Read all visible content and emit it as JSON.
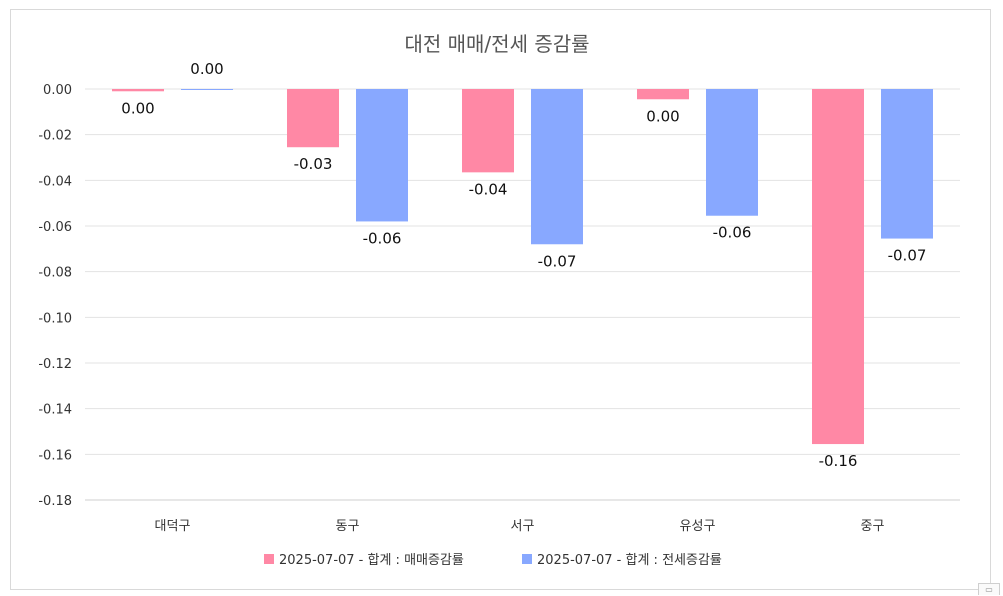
{
  "chart_data": {
    "type": "bar",
    "title": "대전 매매/전세 증감률",
    "categories": [
      "대덕구",
      "동구",
      "서구",
      "유성구",
      "중구"
    ],
    "series": [
      {
        "name": "2025-07-07 - 합계 : 매매증감률",
        "color": "#ff88a5",
        "values": [
          -0.001,
          -0.0255,
          -0.0365,
          -0.0045,
          -0.1555
        ],
        "labels": [
          "0.00",
          "-0.03",
          "-0.04",
          "0.00",
          "-0.16"
        ]
      },
      {
        "name": "2025-07-07 - 합계 : 전세증감률",
        "color": "#88a8ff",
        "values": [
          0.0,
          -0.058,
          -0.068,
          -0.0555,
          -0.0655
        ],
        "labels": [
          "0.00",
          "-0.06",
          "-0.07",
          "-0.06",
          "-0.07"
        ]
      }
    ],
    "y_ticks": [
      "0.00",
      "-0.02",
      "-0.04",
      "-0.06",
      "-0.08",
      "-0.10",
      "-0.12",
      "-0.14",
      "-0.16",
      "-0.18"
    ],
    "ylim": [
      -0.18,
      0.0
    ],
    "grid": true,
    "legend_position": "bottom"
  }
}
